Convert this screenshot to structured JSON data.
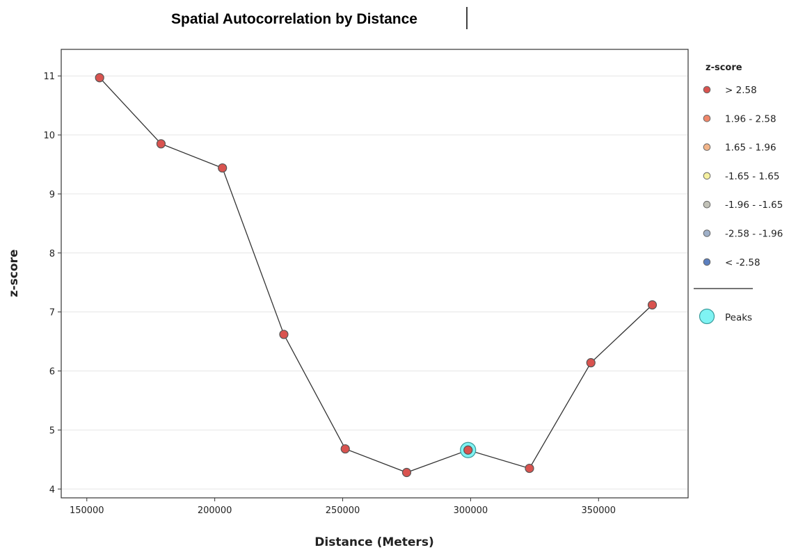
{
  "chart_data": {
    "type": "line",
    "title": "Spatial Autocorrelation by Distance",
    "xlabel": "Distance (Meters)",
    "ylabel": "z-score",
    "xlim": [
      140000,
      385000
    ],
    "ylim": [
      3.85,
      11.45
    ],
    "x_ticks": [
      150000,
      200000,
      250000,
      300000,
      350000
    ],
    "y_ticks": [
      4,
      5,
      6,
      7,
      8,
      9,
      10,
      11
    ],
    "grid": "horizontal",
    "legend_position": "right",
    "series": [
      {
        "x": [
          155000,
          179000,
          203000,
          227000,
          251000,
          275000,
          299000,
          323000,
          347000,
          371000
        ],
        "y": [
          10.97,
          9.85,
          9.44,
          6.62,
          4.68,
          4.28,
          4.66,
          4.35,
          6.14,
          7.12
        ],
        "z_class": [
          ">2.58",
          ">2.58",
          ">2.58",
          ">2.58",
          ">2.58",
          ">2.58",
          ">2.58",
          ">2.58",
          ">2.58",
          ">2.58"
        ],
        "peak": [
          false,
          false,
          false,
          false,
          false,
          false,
          true,
          false,
          false,
          false
        ]
      }
    ],
    "legend": {
      "title": "z-score",
      "items": [
        {
          "label": "> 2.58",
          "color": "#d9534f"
        },
        {
          "label": "1.96 - 2.58",
          "color": "#f0876a"
        },
        {
          "label": "1.65 - 1.96",
          "color": "#f2b58a"
        },
        {
          "label": "-1.65 - 1.65",
          "color": "#f5f0a0"
        },
        {
          "label": "-1.96 - -1.65",
          "color": "#c2c2b8"
        },
        {
          "label": "-2.58 - -1.96",
          "color": "#9fb0c8"
        },
        {
          "label": "< -2.58",
          "color": "#5b7fbf"
        }
      ],
      "peaks_label": "Peaks",
      "peaks_color": "#7ff3f3"
    }
  }
}
